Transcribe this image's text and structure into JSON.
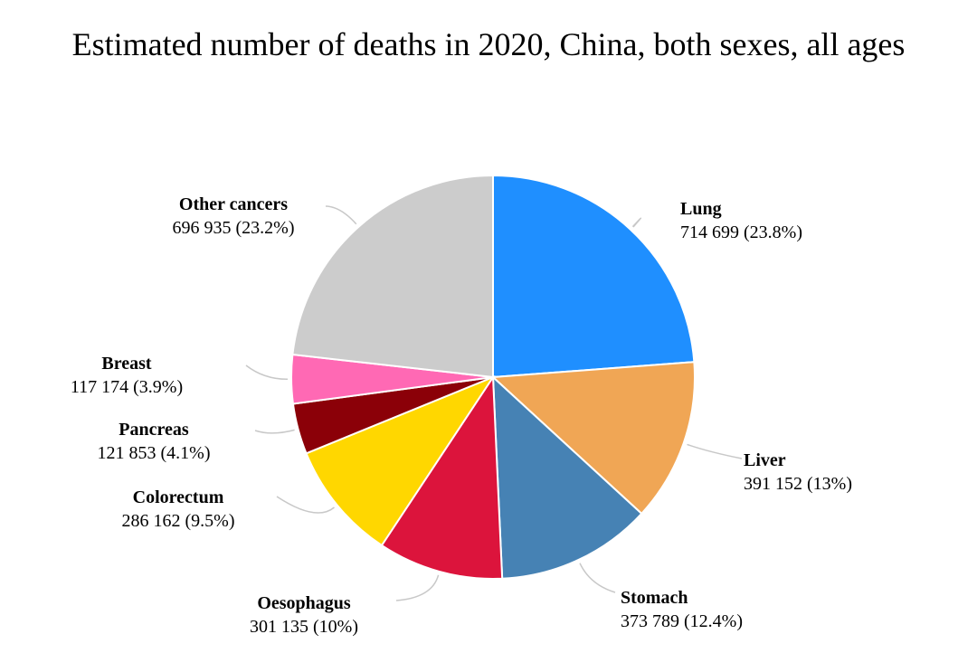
{
  "chart_data": {
    "type": "pie",
    "title": "Estimated number of deaths in 2020, China, both sexes, all ages",
    "slices": [
      {
        "label": "Lung",
        "value": 714699,
        "value_text": "714 699",
        "percent_text": "23.8%",
        "color": "#1f8fff"
      },
      {
        "label": "Liver",
        "value": 391152,
        "value_text": "391 152",
        "percent_text": "13%",
        "color": "#f0a655"
      },
      {
        "label": "Stomach",
        "value": 373789,
        "value_text": "373 789",
        "percent_text": "12.4%",
        "color": "#4682b4"
      },
      {
        "label": "Oesophagus",
        "value": 301135,
        "value_text": "301 135",
        "percent_text": "10%",
        "color": "#dc143c"
      },
      {
        "label": "Colorectum",
        "value": 286162,
        "value_text": "286 162",
        "percent_text": "9.5%",
        "color": "#ffd700"
      },
      {
        "label": "Pancreas",
        "value": 121853,
        "value_text": "121 853",
        "percent_text": "4.1%",
        "color": "#8b0008"
      },
      {
        "label": "Breast",
        "value": 117174,
        "value_text": "117 174",
        "percent_text": "3.9%",
        "color": "#ff69b4"
      },
      {
        "label": "Other cancers",
        "value": 696935,
        "value_text": "696 935",
        "percent_text": "23.2%",
        "color": "#cccccc"
      }
    ]
  }
}
